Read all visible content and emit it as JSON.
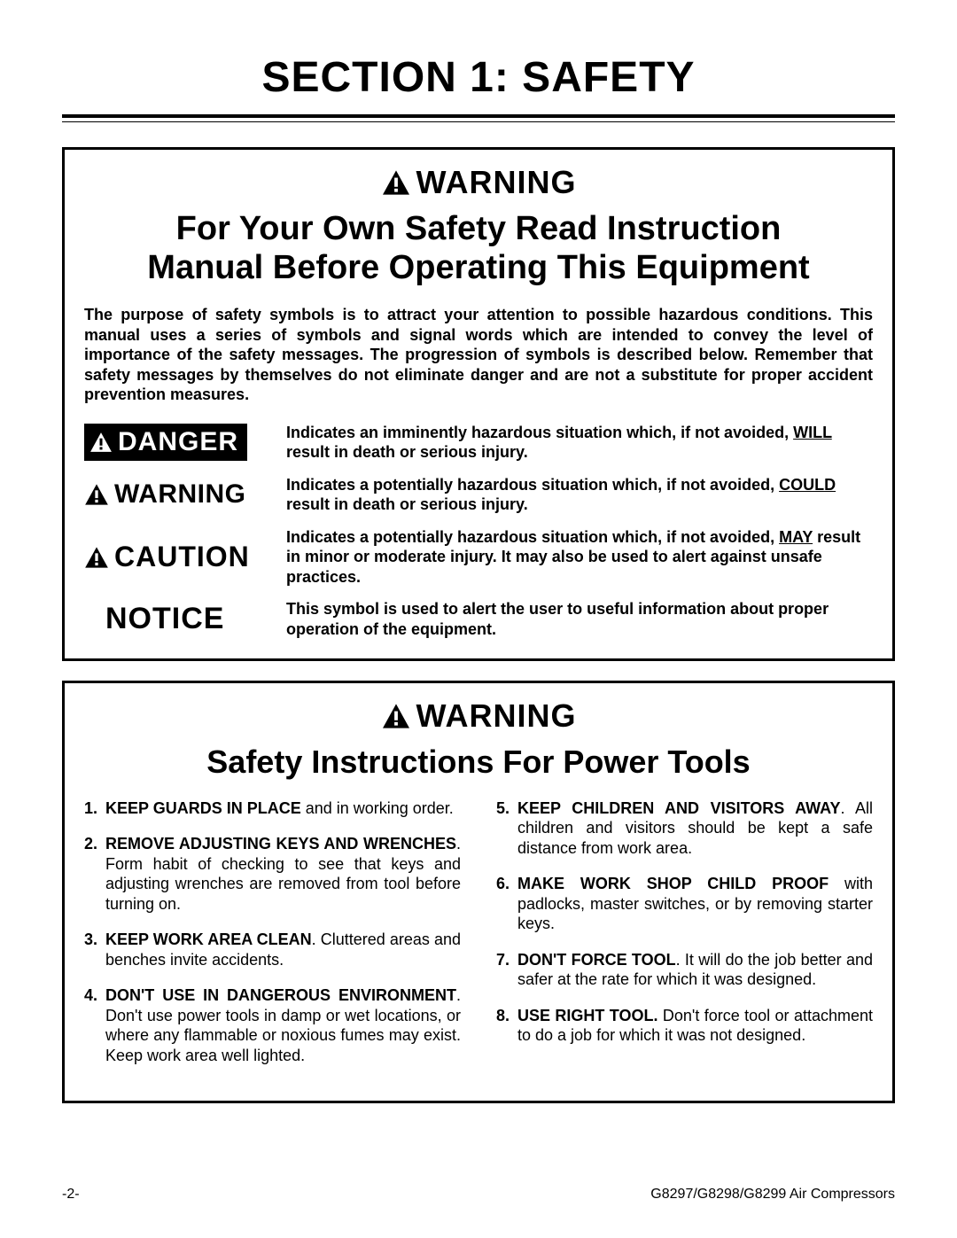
{
  "colors": {
    "page_bg": "#ffffff",
    "text": "#000000",
    "danger_bg": "#000000",
    "danger_text": "#ffffff",
    "rule_color": "#000000"
  },
  "typography": {
    "title_size_pt": 36,
    "subtitle_size_pt": 28,
    "warn_header_size_pt": 27,
    "body_size_pt": 13.5,
    "family": "Arial"
  },
  "title": "SECTION 1: SAFETY",
  "panel1": {
    "warning_label": "WARNING",
    "subtitle_line1": "For Your Own Safety Read Instruction",
    "subtitle_line2": "Manual Before Operating This Equipment",
    "intro": "The purpose of safety symbols is to attract your attention to possible hazardous conditions. This manual uses a series of symbols and signal words which are intended to convey the level of importance of the safety messages. The progression of symbols is described below. Remember that safety messages by themselves do not eliminate danger and are not a substitute for proper accident prevention measures.",
    "symbols": {
      "danger": {
        "label": "DANGER",
        "desc_pre": "Indicates an imminently hazardous situation which, if not avoided, ",
        "desc_key": "WILL",
        "desc_post": " result in death or serious injury."
      },
      "warning": {
        "label": "WARNING",
        "desc_pre": "Indicates a potentially hazardous situation which, if not avoided, ",
        "desc_key": "COULD",
        "desc_post": " result in death or serious injury."
      },
      "caution": {
        "label": "CAUTION",
        "desc_pre": "Indicates a potentially hazardous situation which, if not avoided, ",
        "desc_key": "MAY",
        "desc_post": " result in minor or moderate injury. It may also be used to alert against unsafe practices."
      },
      "notice": {
        "label": "NOTICE",
        "desc": "This symbol is used to alert the user to useful information about proper operation of the equipment."
      }
    }
  },
  "panel2": {
    "warning_label": "WARNING",
    "subtitle": "Safety Instructions For Power Tools",
    "left": [
      {
        "n": "1.",
        "bold": "KEEP GUARDS IN PLACE",
        "rest": " and in working order."
      },
      {
        "n": "2.",
        "bold": "REMOVE ADJUSTING KEYS AND WRENCHES",
        "rest": ". Form habit of checking to see that keys and adjusting wrenches are removed from tool before turning on."
      },
      {
        "n": "3.",
        "bold": "KEEP WORK AREA CLEAN",
        "rest": ". Cluttered areas and benches invite accidents."
      },
      {
        "n": "4.",
        "bold": "DON'T USE IN DANGEROUS ENVIRONMENT",
        "rest": ". Don't use power tools in damp or wet locations, or where any flammable or noxious fumes may exist. Keep work area well lighted."
      }
    ],
    "right": [
      {
        "n": "5.",
        "bold": "KEEP CHILDREN AND VISITORS AWAY",
        "rest": ". All children and visitors should be kept a safe distance from work area."
      },
      {
        "n": "6.",
        "bold": "MAKE WORK SHOP CHILD PROOF",
        "rest": " with padlocks, master switches, or by removing starter keys."
      },
      {
        "n": "7.",
        "bold": "DON'T FORCE TOOL",
        "rest": ". It will do the job better and safer at the rate for which it was designed."
      },
      {
        "n": "8.",
        "bold": "USE RIGHT TOOL.",
        "rest": " Don't force tool or attachment to do a job for which it was not designed."
      }
    ]
  },
  "footer": {
    "left": "-2-",
    "right": "G8297/G8298/G8299 Air Compressors"
  }
}
